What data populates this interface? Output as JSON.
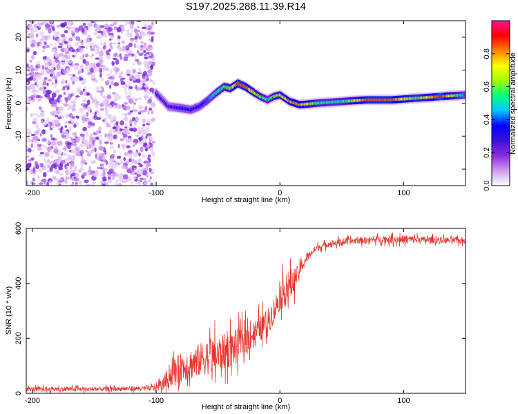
{
  "chart_data": [
    {
      "type": "heatmap",
      "title": "S197.2025.288.11.39.R14",
      "xlabel": "Height of straight line (km)",
      "ylabel": "Frequency (Hz)",
      "xlim": [
        -205,
        150
      ],
      "ylim": [
        -25,
        25
      ],
      "xticks": [
        -200,
        -100,
        0,
        100
      ],
      "yticks": [
        -20,
        -10,
        0,
        10,
        20
      ],
      "colorbar": {
        "label": "Normalized spectral amplitude",
        "range": [
          0,
          1
        ],
        "ticks": [
          "0.0",
          "0.2",
          "0.4",
          "0.6",
          "0.8"
        ],
        "colors": [
          "#ffffff",
          "#cf9cf0",
          "#8a2be2",
          "#3b10d8",
          "#0000ff",
          "#00c8ff",
          "#00ff80",
          "#a0ff00",
          "#ffff00",
          "#ff8000",
          "#ff0000",
          "#ff1493"
        ]
      },
      "noise_region": {
        "x_range": [
          -205,
          -102
        ],
        "f_range": [
          -25,
          25
        ]
      },
      "ridge": {
        "x": [
          -100,
          -90,
          -80,
          -72,
          -65,
          -58,
          -52,
          -45,
          -40,
          -34,
          -28,
          -22,
          -16,
          -10,
          -5,
          0,
          8,
          16,
          30,
          50,
          70,
          90,
          110,
          130,
          150
        ],
        "freq": [
          3.0,
          -1.0,
          -1.5,
          -2.0,
          -1.0,
          1.0,
          3.0,
          5.0,
          4.5,
          6.0,
          5.0,
          3.5,
          2.0,
          1.0,
          2.0,
          2.5,
          0.5,
          -0.5,
          0.0,
          0.5,
          1.0,
          1.0,
          1.5,
          2.0,
          2.5
        ],
        "amplitude": [
          0.3,
          0.3,
          0.35,
          0.35,
          0.35,
          0.4,
          0.5,
          0.55,
          0.6,
          0.85,
          0.85,
          0.7,
          0.6,
          0.5,
          0.6,
          0.65,
          0.8,
          0.8,
          0.55,
          0.5,
          0.85,
          0.85,
          0.55,
          0.9,
          0.4
        ]
      }
    },
    {
      "type": "line",
      "title": "",
      "xlabel": "Height of straight line (km)",
      "ylabel": "SNR (10 * v/v)",
      "xlim": [
        -205,
        150
      ],
      "ylim": [
        0,
        600
      ],
      "xticks": [
        -200,
        -100,
        0,
        100
      ],
      "yticks": [
        0,
        200,
        400,
        600
      ],
      "color": "#e8342c",
      "series": [
        {
          "name": "SNR",
          "x": [
            -205,
            -150,
            -105,
            -95,
            -90,
            -85,
            -80,
            -70,
            -60,
            -50,
            -40,
            -30,
            -20,
            -10,
            -5,
            0,
            5,
            10,
            15,
            20,
            25,
            30,
            40,
            50,
            60,
            80,
            100,
            120,
            150
          ],
          "y_mean": [
            15,
            15,
            18,
            30,
            60,
            80,
            95,
            110,
            130,
            140,
            160,
            190,
            220,
            260,
            300,
            350,
            380,
            400,
            440,
            480,
            510,
            530,
            545,
            550,
            555,
            560,
            560,
            558,
            555
          ],
          "y_spread": [
            10,
            10,
            10,
            25,
            50,
            60,
            65,
            75,
            80,
            85,
            80,
            70,
            60,
            60,
            60,
            60,
            80,
            70,
            30,
            20,
            15,
            15,
            15,
            15,
            15,
            15,
            20,
            15,
            15
          ]
        }
      ]
    }
  ]
}
